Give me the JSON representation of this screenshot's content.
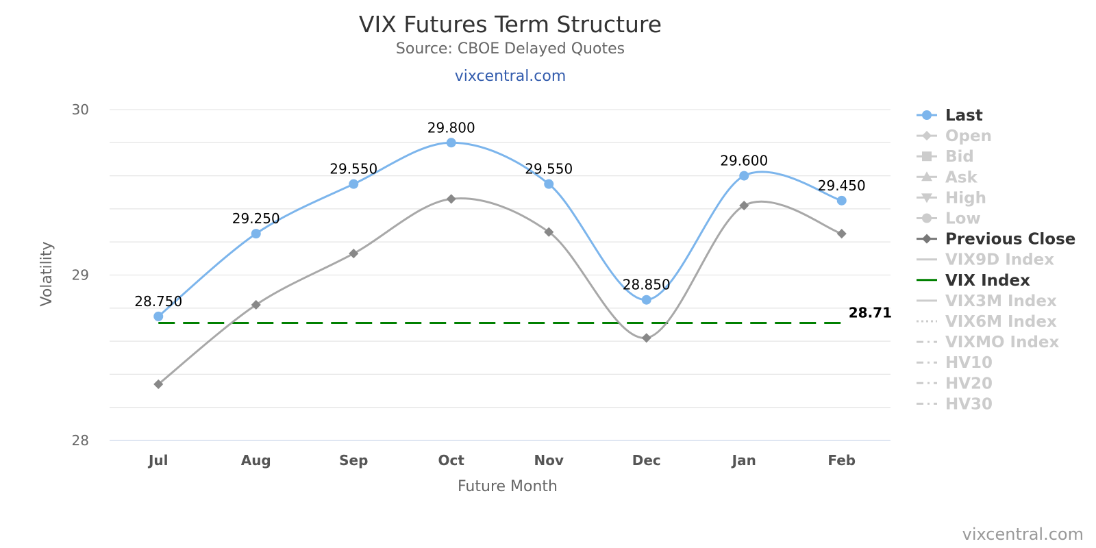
{
  "chart_data": {
    "type": "line",
    "title": "VIX Futures Term Structure",
    "subtitle": "Source: CBOE Delayed Quotes",
    "link_text": "vixcentral.com",
    "credits": "vixcentral.com",
    "xlabel": "Future Month",
    "ylabel": "Volatility",
    "categories": [
      "Jul",
      "Aug",
      "Sep",
      "Oct",
      "Nov",
      "Dec",
      "Jan",
      "Feb"
    ],
    "ylim": [
      28,
      30
    ],
    "yticks": [
      "28",
      "29",
      "30"
    ],
    "grid": true,
    "legend_position": "right",
    "series": [
      {
        "name": "Previous Close",
        "color": "#999999",
        "marker": "diamond",
        "values": [
          28.34,
          28.82,
          29.13,
          29.46,
          29.26,
          28.62,
          29.42,
          29.25
        ]
      },
      {
        "name": "Last",
        "color": "#7cb5ec",
        "marker": "circle",
        "values": [
          28.75,
          29.25,
          29.55,
          29.8,
          29.55,
          28.85,
          29.6,
          29.45
        ],
        "labels": [
          "28.750",
          "29.250",
          "29.550",
          "29.800",
          "29.550",
          "28.850",
          "29.600",
          "29.450"
        ]
      },
      {
        "name": "VIX Index",
        "color": "#008000",
        "dash": "dashed",
        "value": 28.71,
        "label": "28.71"
      }
    ],
    "legend": [
      {
        "name": "Last",
        "active": true,
        "symbol": "circle",
        "line": "solid",
        "color": "#7cb5ec"
      },
      {
        "name": "Open",
        "active": false,
        "symbol": "diamond",
        "line": "solid"
      },
      {
        "name": "Bid",
        "active": false,
        "symbol": "square",
        "line": "solid"
      },
      {
        "name": "Ask",
        "active": false,
        "symbol": "triangle",
        "line": "solid"
      },
      {
        "name": "High",
        "active": false,
        "symbol": "triangle-down",
        "line": "solid"
      },
      {
        "name": "Low",
        "active": false,
        "symbol": "circle",
        "line": "solid"
      },
      {
        "name": "Previous Close",
        "active": true,
        "symbol": "diamond",
        "line": "solid",
        "color": "#777777"
      },
      {
        "name": "VIX9D Index",
        "active": false,
        "symbol": "none",
        "line": "solid"
      },
      {
        "name": "VIX Index",
        "active": true,
        "symbol": "none",
        "line": "solid",
        "color": "#008000"
      },
      {
        "name": "VIX3M Index",
        "active": false,
        "symbol": "none",
        "line": "solid"
      },
      {
        "name": "VIX6M Index",
        "active": false,
        "symbol": "none",
        "line": "dotted"
      },
      {
        "name": "VIXMO Index",
        "active": false,
        "symbol": "none",
        "line": "dashdot"
      },
      {
        "name": "HV10",
        "active": false,
        "symbol": "none",
        "line": "dashdot"
      },
      {
        "name": "HV20",
        "active": false,
        "symbol": "none",
        "line": "dashdot"
      },
      {
        "name": "HV30",
        "active": false,
        "symbol": "none",
        "line": "dashdot"
      }
    ],
    "colors": {
      "legend_active_text": "#333333",
      "legend_inactive": "#cccccc",
      "gridline": "#e6e6e6",
      "axis_line": "#ccd6eb"
    }
  }
}
